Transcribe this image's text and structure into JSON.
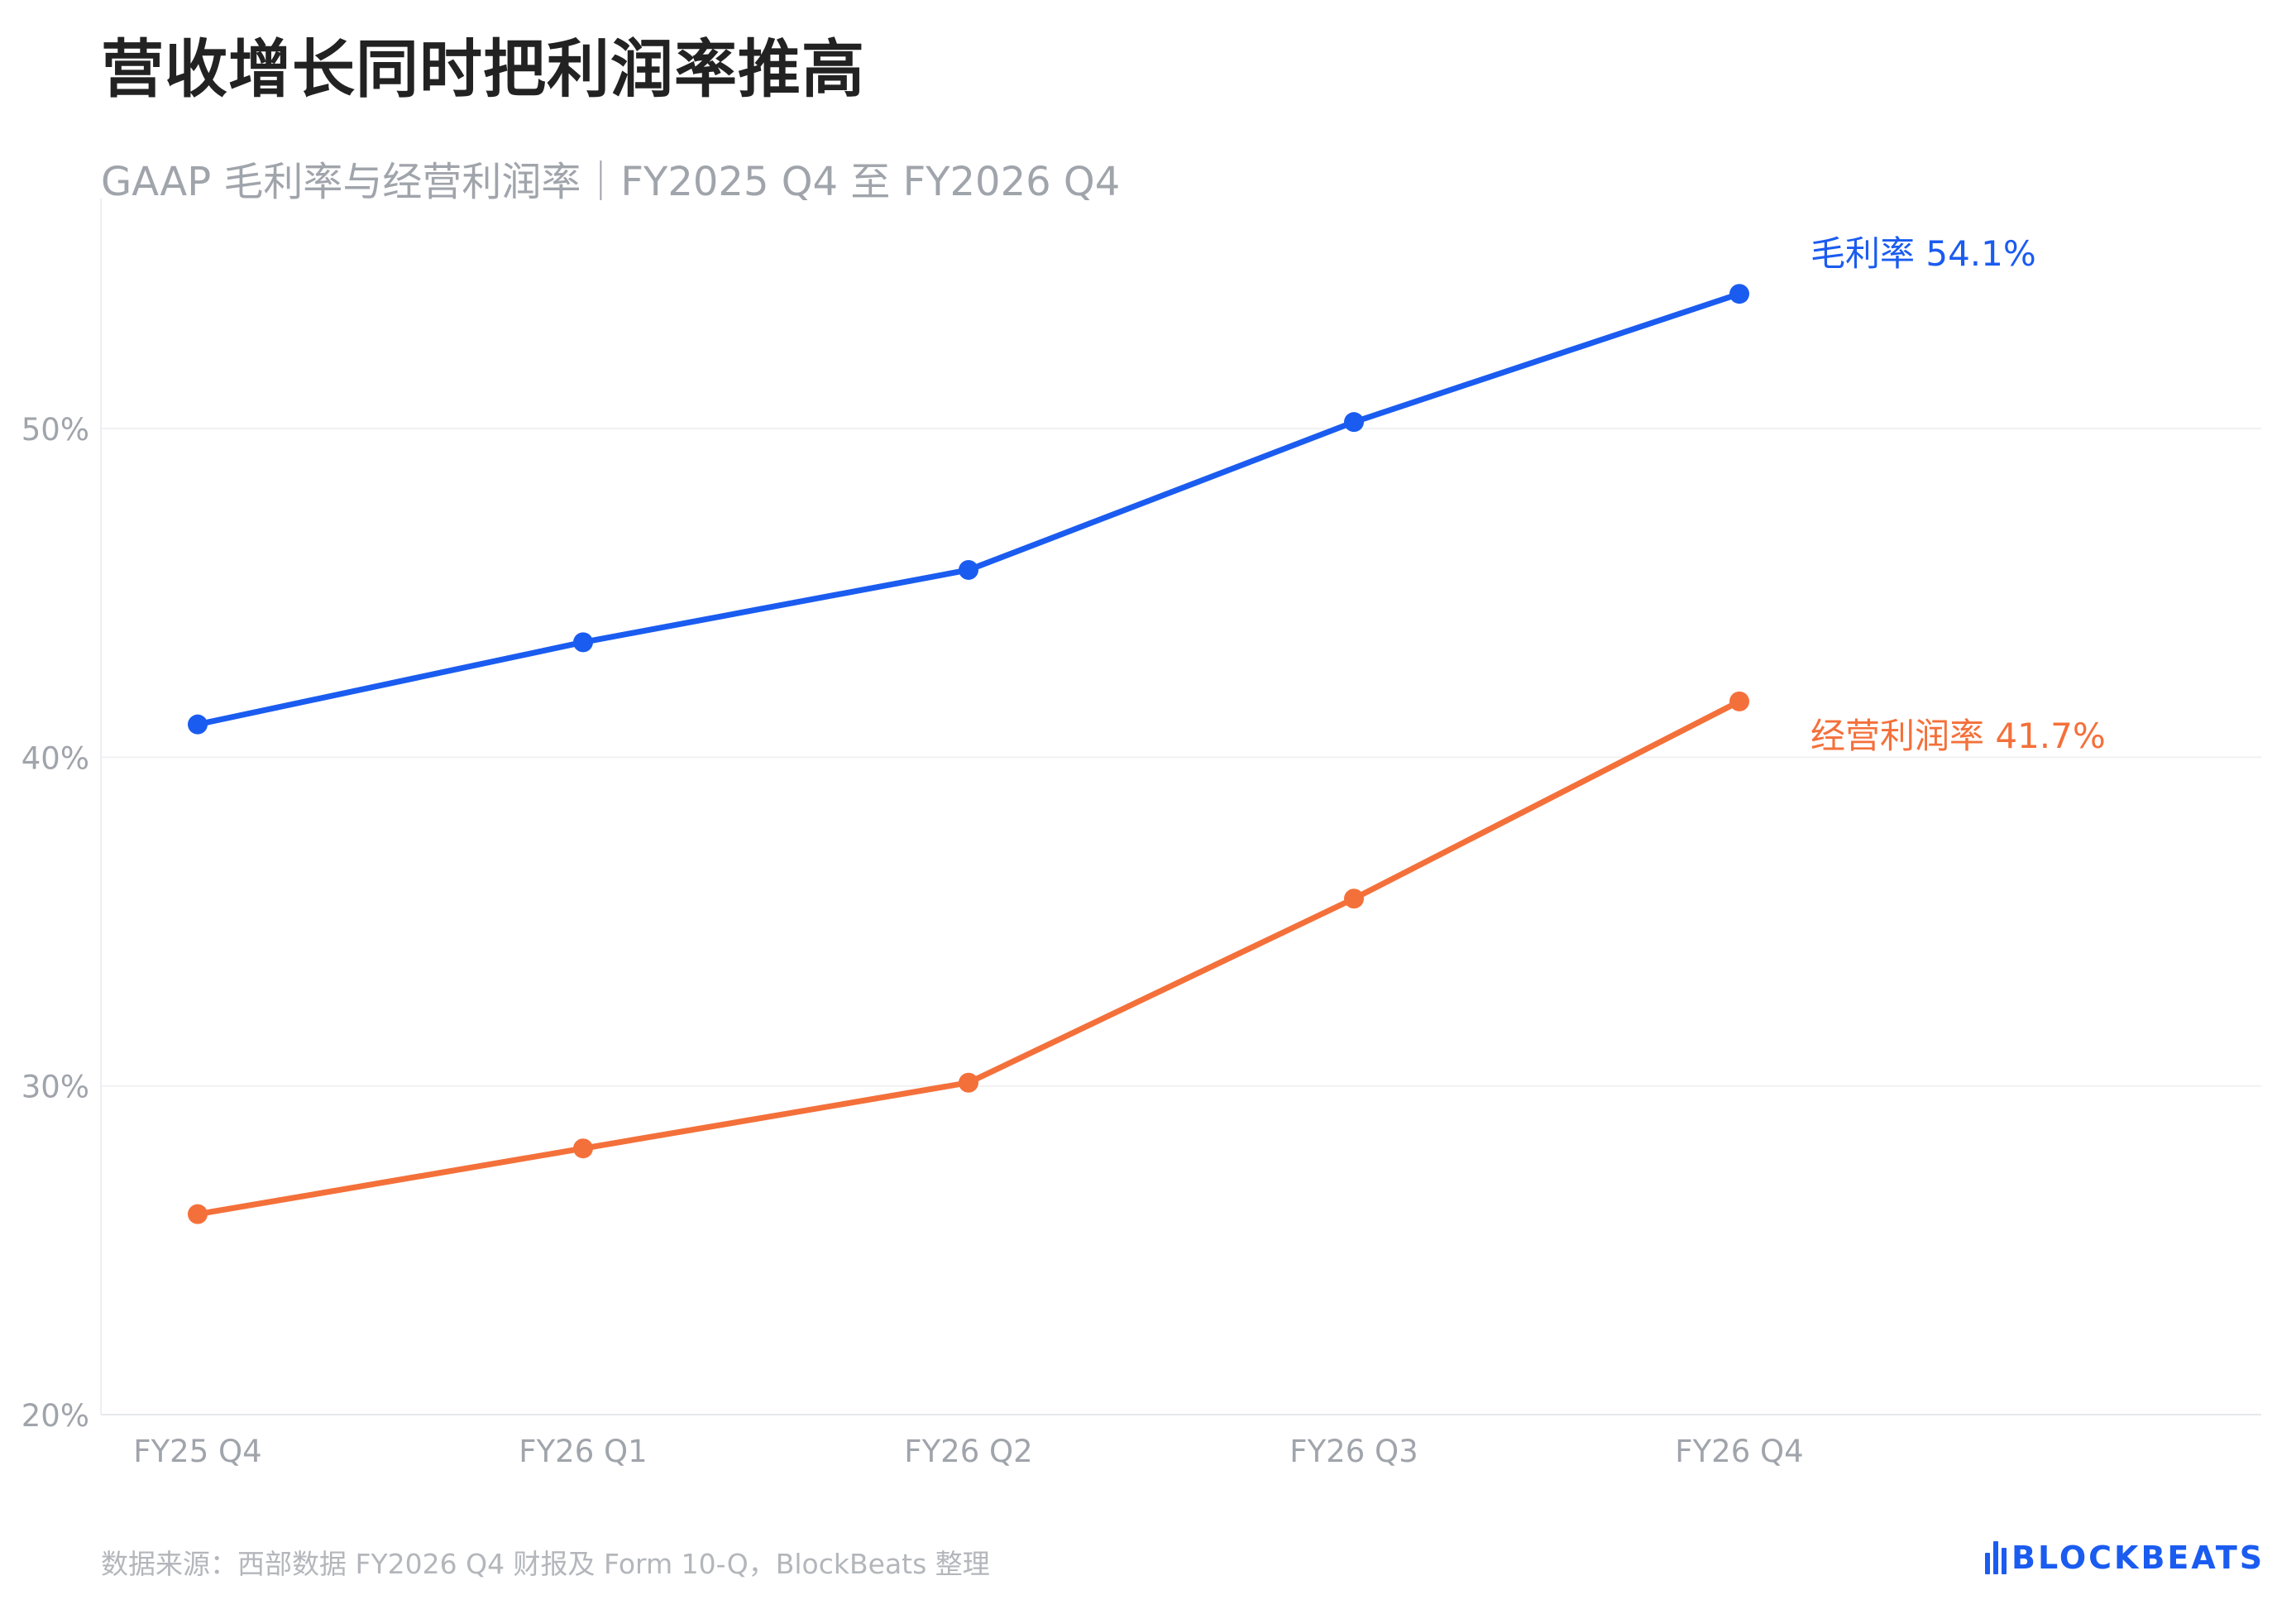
{
  "title": "营收增长同时把利润率推高",
  "subtitle": "GAAP 毛利率与经营利润率｜FY2025 Q4 至 FY2026 Q4",
  "source": "数据来源：西部数据 FY2026 Q4 财报及 Form 10-Q，BlockBeats 整理",
  "logo": {
    "text": "BLOCKBEATS",
    "icon": "blockbeats-logo-icon"
  },
  "colors": {
    "gross": "#1b5cf0",
    "operating": "#f4703a",
    "axis_text": "#a0a4ab",
    "grid": "#f0f1f3"
  },
  "chart_data": {
    "type": "line",
    "categories": [
      "FY25 Q4",
      "FY26 Q1",
      "FY26 Q2",
      "FY26 Q3",
      "FY26 Q4"
    ],
    "ylim": [
      20,
      57
    ],
    "yticks": [
      20,
      30,
      40,
      50
    ],
    "ytick_labels": [
      "20%",
      "30%",
      "40%",
      "50%"
    ],
    "grid": true,
    "series": [
      {
        "key": "gross",
        "values": [
          41.0,
          43.5,
          45.7,
          50.2,
          54.1
        ],
        "label": "毛利率 54.1%"
      },
      {
        "key": "operating",
        "values": [
          26.1,
          28.1,
          30.1,
          35.7,
          41.7
        ],
        "label": "经营利润率 41.7%"
      }
    ]
  }
}
